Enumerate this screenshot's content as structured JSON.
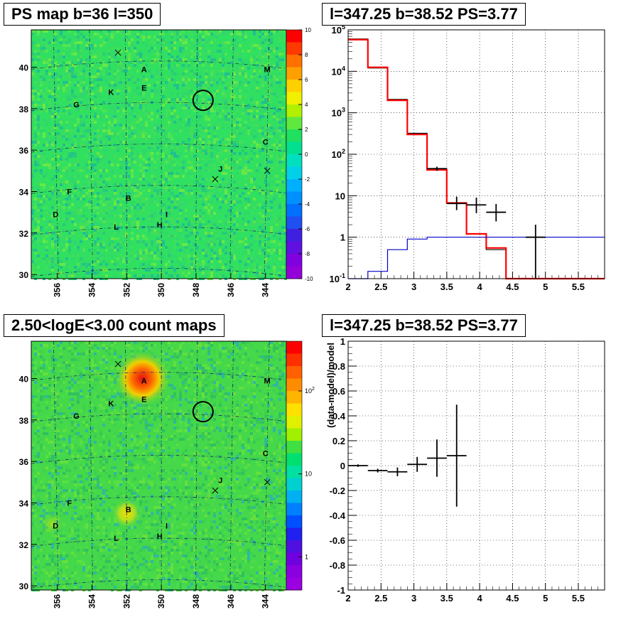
{
  "titles": {
    "ps_map": "PS map b=36 l=350",
    "spectrum": "l=347.25 b=38.52 PS=3.77",
    "count_map": "2.50<logE<3.00 count maps",
    "residual": "l=347.25 b=38.52 PS=3.77"
  },
  "chart_data": [
    {
      "type": "heatmap",
      "id": "ps_map",
      "title": "PS map b=36 l=350",
      "xlabel": "",
      "ylabel": "",
      "x_ticks": [
        "356",
        "354",
        "352",
        "350",
        "348",
        "346",
        "344"
      ],
      "y_ticks": [
        "30",
        "32",
        "34",
        "36",
        "38",
        "40"
      ],
      "x_range": [
        357.5,
        342.8
      ],
      "y_range": [
        29.8,
        41.8
      ],
      "colorbar": {
        "scale": "linear",
        "range": [
          -10,
          10
        ],
        "ticks": [
          "10",
          "8",
          "6",
          "4",
          "2",
          "0",
          "-2",
          "-4",
          "-6",
          "-8",
          "-10"
        ]
      },
      "sources": [
        {
          "label": "A",
          "l": 351.0,
          "b": 39.9
        },
        {
          "label": "E",
          "l": 351.0,
          "b": 39.0
        },
        {
          "label": "M",
          "l": 343.9,
          "b": 39.9
        },
        {
          "label": "K",
          "l": 352.9,
          "b": 38.8
        },
        {
          "label": "G",
          "l": 354.9,
          "b": 38.2
        },
        {
          "label": "C",
          "l": 344.0,
          "b": 36.4
        },
        {
          "label": "J",
          "l": 346.6,
          "b": 35.1
        },
        {
          "label": "F",
          "l": 355.3,
          "b": 34.0
        },
        {
          "label": "B",
          "l": 351.9,
          "b": 33.7
        },
        {
          "label": "D",
          "l": 356.1,
          "b": 32.9
        },
        {
          "label": "I",
          "l": 349.7,
          "b": 32.9
        },
        {
          "label": "H",
          "l": 350.1,
          "b": 32.4
        },
        {
          "label": "L",
          "l": 352.6,
          "b": 32.3
        }
      ],
      "crosses": [
        {
          "l": 352.5,
          "b": 40.7
        },
        {
          "l": 346.9,
          "b": 34.6
        },
        {
          "l": 343.9,
          "b": 35.0
        }
      ],
      "circle": {
        "l": 347.6,
        "b": 38.4
      },
      "colors": {
        "background": "#30e060",
        "frame": "#000000"
      }
    },
    {
      "type": "line",
      "id": "spectrum",
      "title": "l=347.25 b=38.52 PS=3.77",
      "xlabel": "",
      "ylabel": "",
      "x_ticks": [
        "2",
        "2.5",
        "3",
        "3.5",
        "4",
        "4.5",
        "5",
        "5.5"
      ],
      "y_ticks": [
        "10^{-1}",
        "1",
        "10",
        "10^{2}",
        "10^{3}",
        "10^{4}",
        "10^{5}"
      ],
      "xlim": [
        2.0,
        5.9
      ],
      "ylim": [
        0.1,
        100000
      ],
      "yscale": "log",
      "grid": true,
      "series": [
        {
          "kind": "step",
          "color": "#000000",
          "edges": [
            2.0,
            2.3,
            2.6,
            2.9,
            3.2,
            3.5,
            3.8,
            4.1,
            4.4,
            4.7,
            5.0,
            5.9
          ],
          "values": [
            60000,
            12000,
            2100,
            320,
            45,
            6.5,
            1.2,
            0.5,
            0.1,
            0.1,
            0.1
          ]
        },
        {
          "kind": "step",
          "color": "#ff0000",
          "edges": [
            2.0,
            2.3,
            2.6,
            2.9,
            3.2,
            3.5,
            3.8,
            4.1,
            4.4,
            4.7,
            5.0,
            5.9
          ],
          "values": [
            58000,
            12500,
            2000,
            300,
            42,
            6.7,
            1.2,
            0.55,
            0.1,
            0.1,
            0.1
          ]
        },
        {
          "kind": "step",
          "color": "#0000cc",
          "edges": [
            2.0,
            2.3,
            2.6,
            2.9,
            3.2,
            3.5,
            3.8,
            4.1,
            4.4,
            4.7,
            5.0,
            5.9
          ],
          "values": [
            0.1,
            0.15,
            0.5,
            0.9,
            1.0,
            1.0,
            1.0,
            1.0,
            1.0,
            1.0,
            1.0
          ]
        },
        {
          "kind": "errorbars",
          "color": "#000000",
          "points": [
            {
              "x": 3.35,
              "y": 45,
              "xerr": 0.15,
              "ylo": 40,
              "yhi": 50
            },
            {
              "x": 3.65,
              "y": 6.5,
              "xerr": 0.15,
              "ylo": 4.5,
              "yhi": 9.5
            },
            {
              "x": 3.95,
              "y": 6,
              "xerr": 0.15,
              "ylo": 3.8,
              "yhi": 9
            },
            {
              "x": 4.25,
              "y": 4,
              "xerr": 0.15,
              "ylo": 2.4,
              "yhi": 6.3
            },
            {
              "x": 4.85,
              "y": 1,
              "xerr": 0.15,
              "ylo": 0.1,
              "yhi": 2.0
            }
          ]
        }
      ]
    },
    {
      "type": "heatmap",
      "id": "count_map",
      "title": "2.50<logE<3.00 count maps",
      "xlabel": "",
      "ylabel": "",
      "x_ticks": [
        "356",
        "354",
        "352",
        "350",
        "348",
        "346",
        "344"
      ],
      "y_ticks": [
        "30",
        "32",
        "34",
        "36",
        "38",
        "40"
      ],
      "x_range": [
        357.5,
        342.8
      ],
      "y_range": [
        29.8,
        41.8
      ],
      "colorbar": {
        "scale": "log",
        "ticks": [
          "10^{2}",
          "10",
          "1"
        ]
      },
      "hotspots": [
        {
          "l": 351.1,
          "b": 40.0,
          "intensity": "high"
        },
        {
          "l": 352.0,
          "b": 33.5,
          "intensity": "medium"
        },
        {
          "l": 356.3,
          "b": 33.0,
          "intensity": "low"
        }
      ],
      "colors": {
        "background": "#44d84a",
        "frame": "#000000"
      }
    },
    {
      "type": "scatter",
      "id": "residual",
      "title": "l=347.25 b=38.52 PS=3.77",
      "xlabel": "",
      "ylabel": "(data-model)/model",
      "x_ticks": [
        "2",
        "2.5",
        "3",
        "3.5",
        "4",
        "4.5",
        "5",
        "5.5"
      ],
      "y_ticks": [
        "-1",
        "-0.8",
        "-0.6",
        "-0.4",
        "-0.2",
        "0",
        "0.2",
        "0.4",
        "0.6",
        "0.8",
        "1"
      ],
      "xlim": [
        2.0,
        5.9
      ],
      "ylim": [
        -1,
        1
      ],
      "grid": true,
      "points": [
        {
          "x": 2.15,
          "y": 0.0,
          "xerr": 0.15,
          "ylo": -0.01,
          "yhi": 0.01
        },
        {
          "x": 2.45,
          "y": -0.04,
          "xerr": 0.15,
          "ylo": -0.055,
          "yhi": -0.025
        },
        {
          "x": 2.75,
          "y": -0.05,
          "xerr": 0.15,
          "ylo": -0.085,
          "yhi": -0.015
        },
        {
          "x": 3.05,
          "y": 0.01,
          "xerr": 0.15,
          "ylo": -0.05,
          "yhi": 0.07
        },
        {
          "x": 3.35,
          "y": 0.06,
          "xerr": 0.15,
          "ylo": -0.09,
          "yhi": 0.21
        },
        {
          "x": 3.65,
          "y": 0.08,
          "xerr": 0.15,
          "ylo": -0.33,
          "yhi": 0.49
        }
      ]
    }
  ]
}
